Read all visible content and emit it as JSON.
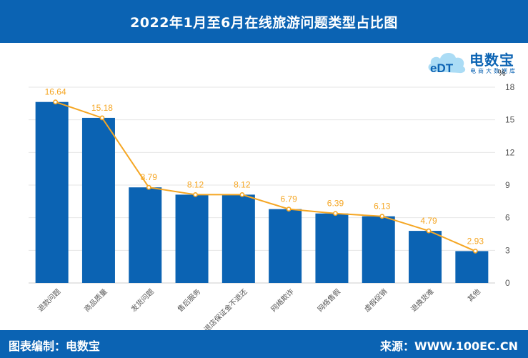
{
  "header": {
    "title": "2022年1月至6月在线旅游问题类型占比图"
  },
  "logo": {
    "name": "电数宝",
    "badge": "eDT",
    "subtitle": "电商大数据库"
  },
  "footer": {
    "left": "图表编制：电数宝",
    "right": "来源：WWW.100EC.CN"
  },
  "colors": {
    "header_bg": "#0b63b3",
    "bar": "#0b63b3",
    "line": "#f5a623",
    "grid": "#e6e6e6",
    "axis_text": "#555555"
  },
  "chart_data": {
    "type": "bar",
    "title": "",
    "ylabel": "%",
    "ylim": [
      0,
      18
    ],
    "yticks": [
      0,
      3,
      6,
      9,
      12,
      15,
      18
    ],
    "categories": [
      "退款问题",
      "商品质量",
      "发货问题",
      "售后服务",
      "退店保证金不退还",
      "网络欺诈",
      "网络售假",
      "虚假促销",
      "退换货难",
      "其他"
    ],
    "series": [
      {
        "kind": "bar",
        "values": [
          16.64,
          15.18,
          8.79,
          8.12,
          8.12,
          6.79,
          6.39,
          6.13,
          4.79,
          2.93
        ]
      },
      {
        "kind": "line",
        "values": [
          16.64,
          15.18,
          8.79,
          8.12,
          8.12,
          6.79,
          6.39,
          6.13,
          4.79,
          2.93
        ],
        "labels": [
          "16.64",
          "15.18",
          "8.79",
          "8.12",
          "8.12",
          "6.79",
          "6.39",
          "6.13",
          "4.79",
          "2.93"
        ]
      }
    ],
    "grid": true,
    "legend": "none"
  }
}
